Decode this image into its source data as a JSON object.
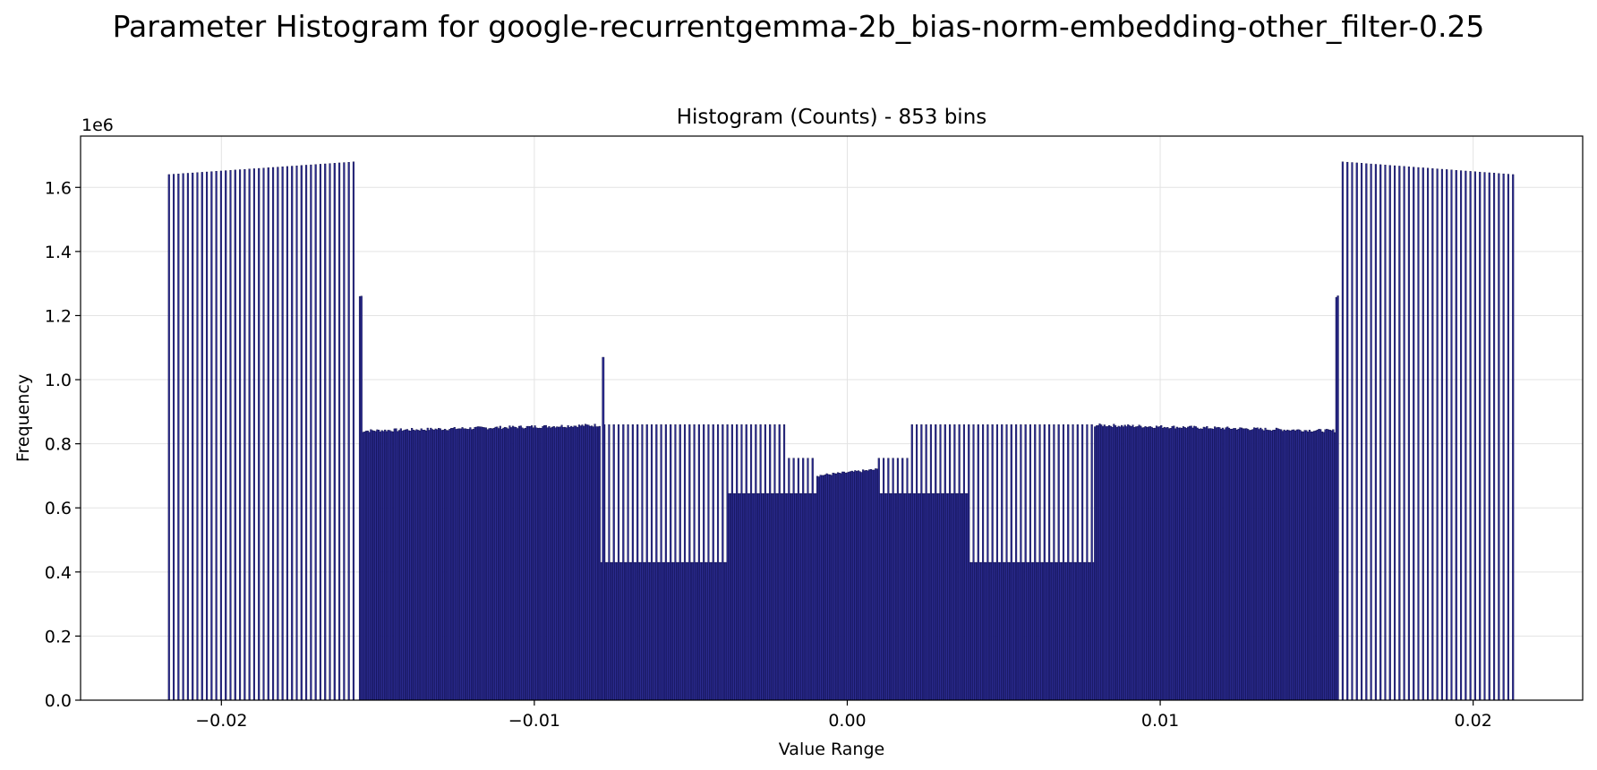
{
  "figure": {
    "title": "Parameter Histogram for google-recurrentgemma-2b_bias-norm-embedding-other_filter-0.25"
  },
  "chart_data": {
    "type": "bar",
    "title": "Histogram (Counts) - 853 bins",
    "xlabel": "Value Range",
    "ylabel": "Frequency",
    "y_offset_label": "1e6",
    "xlim": [
      -0.0245,
      0.0235
    ],
    "ylim": [
      0,
      1760000
    ],
    "x_ticks": [
      -0.02,
      -0.01,
      0.0,
      0.01,
      0.02
    ],
    "x_tick_labels": [
      "−0.02",
      "−0.01",
      "0.00",
      "0.01",
      "0.02"
    ],
    "y_ticks": [
      0,
      200000,
      400000,
      600000,
      800000,
      1000000,
      1200000,
      1400000,
      1600000
    ],
    "y_tick_labels": [
      "0.0",
      "0.2",
      "0.4",
      "0.6",
      "0.8",
      "1.0",
      "1.2",
      "1.4",
      "1.6"
    ],
    "grid": true,
    "bar_color": "#2b2b8f",
    "edge_color": "#000033",
    "bins": 853,
    "bin_range": [
      -0.0217,
      0.0213
    ],
    "segments": [
      {
        "x0": -0.0217,
        "x1": -0.0157,
        "v0": 1640000,
        "v1": 1680000,
        "pattern": "sparse"
      },
      {
        "x0": -0.0156,
        "x1": -0.0155,
        "v0": 1260000,
        "v1": 1260000,
        "pattern": "dense"
      },
      {
        "x0": -0.0155,
        "x1": -0.0079,
        "v0": 840000,
        "v1": 858000,
        "pattern": "dense"
      },
      {
        "x0": -0.0079,
        "x1": -0.0038,
        "v0": 860000,
        "v1": 860000,
        "pattern": "split",
        "low": 430000
      },
      {
        "x0": -0.0038,
        "x1": -0.0019,
        "v0": 860000,
        "v1": 860000,
        "pattern": "split",
        "low": 645000
      },
      {
        "x0": -0.0019,
        "x1": -0.001,
        "v0": 755000,
        "v1": 755000,
        "pattern": "split",
        "low": 645000
      },
      {
        "x0": -0.001,
        "x1": 0.001,
        "v0": 700000,
        "v1": 720000,
        "pattern": "dense"
      },
      {
        "x0": 0.001,
        "x1": 0.002,
        "v0": 755000,
        "v1": 755000,
        "pattern": "split",
        "low": 645000
      },
      {
        "x0": 0.002,
        "x1": 0.0039,
        "v0": 860000,
        "v1": 860000,
        "pattern": "split",
        "low": 645000
      },
      {
        "x0": 0.0039,
        "x1": 0.0079,
        "v0": 860000,
        "v1": 860000,
        "pattern": "split",
        "low": 430000
      },
      {
        "x0": 0.0079,
        "x1": 0.0156,
        "v0": 858000,
        "v1": 840000,
        "pattern": "dense"
      },
      {
        "x0": 0.0156,
        "x1": 0.0157,
        "v0": 1260000,
        "v1": 1260000,
        "pattern": "dense"
      },
      {
        "x0": 0.0158,
        "x1": 0.0213,
        "v0": 1680000,
        "v1": 1640000,
        "pattern": "sparse"
      }
    ],
    "spikes": [
      {
        "x": -0.0078,
        "value": 1070000
      }
    ]
  }
}
